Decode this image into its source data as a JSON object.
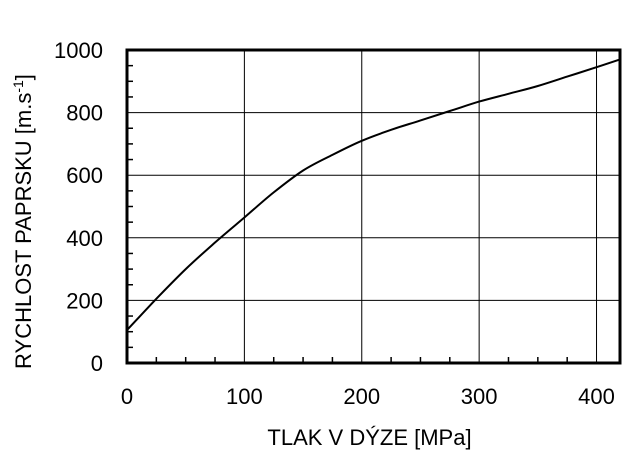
{
  "chart_data": {
    "type": "line",
    "xlabel": "TLAK V DÝZE [MPa]",
    "ylabel": "RYCHLOST PAPRSKU [m.s",
    "ylabel_sup": "-1",
    "ylabel_tail": "]",
    "xlim": [
      0,
      420
    ],
    "ylim": [
      0,
      1000
    ],
    "x_ticks": [
      0,
      100,
      200,
      300,
      400
    ],
    "y_ticks": [
      0,
      200,
      400,
      600,
      800,
      1000
    ],
    "x_tick_labels": [
      "0",
      "100",
      "200",
      "300",
      "400"
    ],
    "y_tick_labels": [
      "0",
      "200",
      "400",
      "600",
      "800",
      "1000"
    ],
    "grid": true,
    "series": [
      {
        "x": [
          0,
          25,
          50,
          75,
          100,
          125,
          150,
          175,
          200,
          225,
          250,
          275,
          300,
          325,
          350,
          375,
          400,
          420
        ],
        "y": [
          105,
          205,
          300,
          385,
          465,
          545,
          615,
          665,
          710,
          745,
          775,
          805,
          835,
          860,
          885,
          915,
          945,
          970
        ]
      }
    ]
  }
}
